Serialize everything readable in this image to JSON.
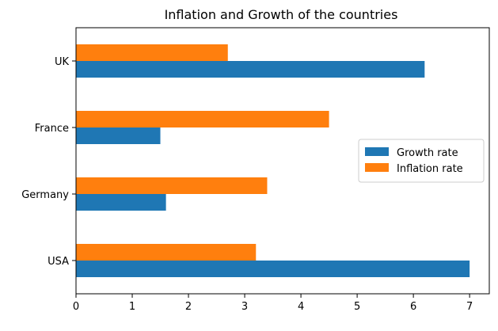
{
  "chart_data": {
    "type": "bar",
    "orientation": "horizontal",
    "title": "Inflation and Growth of the countries",
    "xlabel": "",
    "ylabel": "",
    "categories": [
      "USA",
      "Germany",
      "France",
      "UK"
    ],
    "series": [
      {
        "name": "Growth rate",
        "values": [
          7.0,
          1.6,
          1.5,
          6.2
        ],
        "color": "#1f77b4"
      },
      {
        "name": "Inflation rate",
        "values": [
          3.2,
          3.4,
          4.5,
          2.7
        ],
        "color": "#ff7f0e"
      }
    ],
    "xlim": [
      0,
      7.35
    ],
    "xticks": [
      0,
      1,
      2,
      3,
      4,
      5,
      6,
      7
    ],
    "grid": false,
    "legend_position": "center-right"
  }
}
